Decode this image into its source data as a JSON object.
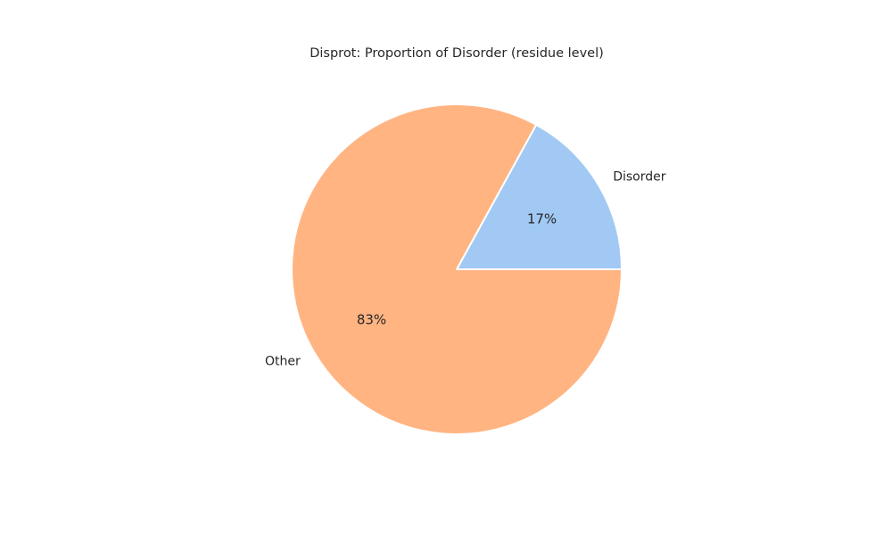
{
  "chart_data": {
    "type": "pie",
    "title": "Disprot: Proportion of Disorder (residue level)",
    "categories": [
      "Disorder",
      "Other"
    ],
    "values": [
      17,
      83
    ],
    "value_labels": [
      "17%",
      "83%"
    ],
    "colors": [
      "#a1c9f4",
      "#ffb482"
    ],
    "start_angle_deg": 0,
    "direction": "counterclockwise"
  }
}
